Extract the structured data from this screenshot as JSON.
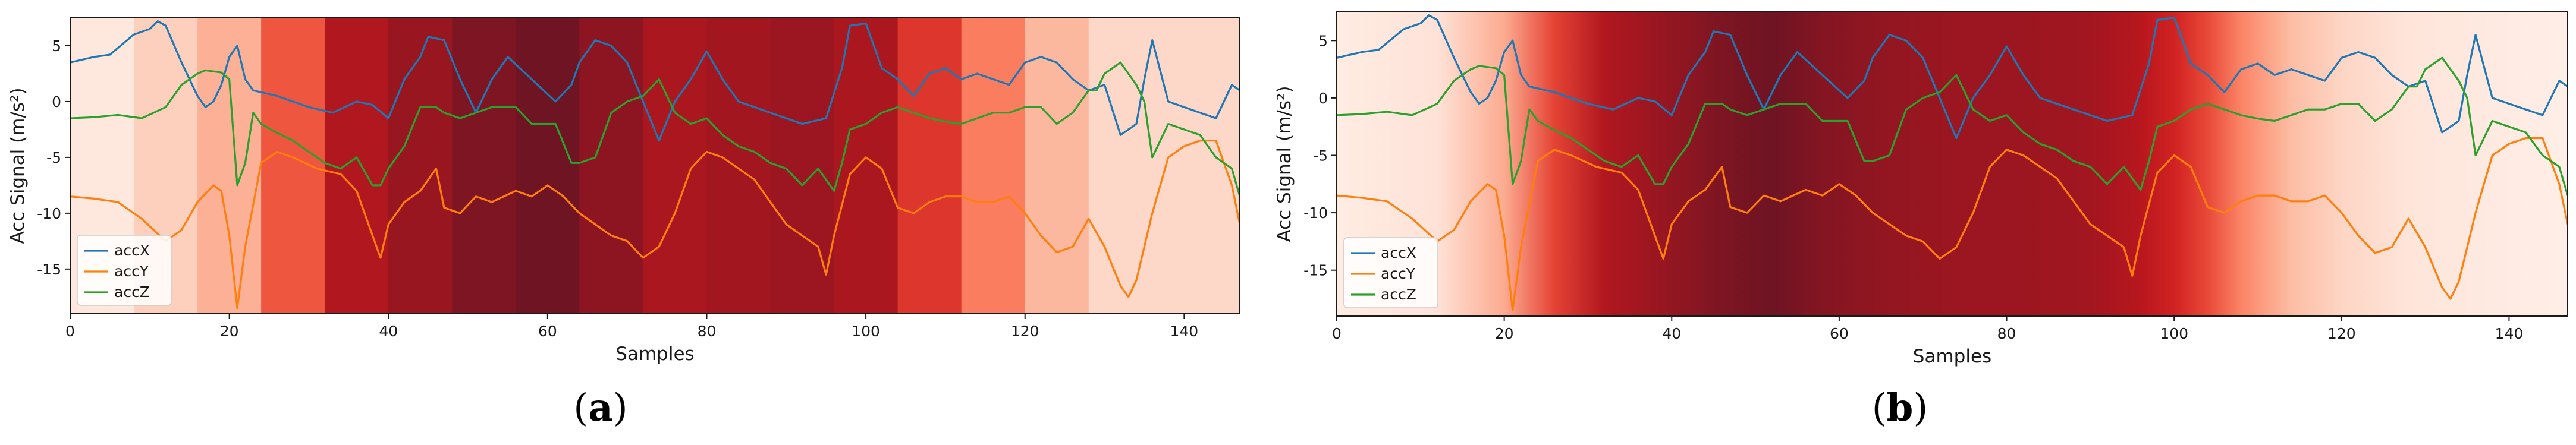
{
  "chart_data": [
    {
      "panel": "(a)",
      "panel_letter": "a",
      "type": "line",
      "background": "discrete_heatmap",
      "xlabel": "Samples",
      "ylabel": "Acc Signal (m/s²)",
      "xlim": [
        0,
        147
      ],
      "ylim": [
        -19,
        7.5
      ],
      "xticks": [
        0,
        20,
        40,
        60,
        80,
        100,
        120,
        140
      ],
      "yticks": [
        -15,
        -10,
        -5,
        0,
        5
      ],
      "legend_position": "lower-left",
      "grid": false,
      "heat_segments": {
        "edges": [
          0,
          8,
          16,
          24,
          32,
          40,
          48,
          56,
          64,
          72,
          80,
          88,
          96,
          104,
          112,
          120,
          128,
          147
        ],
        "intensity": [
          0.06,
          0.16,
          0.28,
          0.56,
          0.82,
          0.89,
          0.96,
          1.0,
          0.92,
          0.84,
          0.86,
          0.88,
          0.84,
          0.66,
          0.44,
          0.26,
          0.13
        ]
      },
      "series": [
        {
          "name": "accX",
          "color": "#1f77b4",
          "x": [
            0,
            3,
            5,
            8,
            10,
            11,
            12,
            14,
            16,
            17,
            18,
            19,
            20,
            21,
            22,
            23,
            26,
            30,
            33,
            36,
            38,
            40,
            42,
            44,
            45,
            47,
            49,
            51,
            53,
            55,
            58,
            61,
            63,
            64,
            66,
            68,
            70,
            72,
            74,
            76,
            78,
            80,
            82,
            84,
            86,
            88,
            90,
            92,
            95,
            97,
            98,
            100,
            102,
            104,
            106,
            108,
            110,
            112,
            114,
            116,
            118,
            120,
            122,
            124,
            126,
            128,
            130,
            132,
            134,
            135,
            136,
            138,
            140,
            142,
            144,
            146,
            147
          ],
          "y": [
            3.5,
            4,
            4.2,
            6,
            6.5,
            7.2,
            6.8,
            3.5,
            0.5,
            -0.5,
            0,
            1.5,
            4,
            5,
            2,
            1,
            0.5,
            -0.5,
            -1,
            0,
            -0.3,
            -1.5,
            2,
            4,
            5.8,
            5.5,
            2,
            -1,
            2,
            4,
            2,
            0,
            1.5,
            3.5,
            5.5,
            5,
            3.5,
            0,
            -3.5,
            0,
            2,
            4.5,
            2,
            0,
            -0.5,
            -1,
            -1.5,
            -2,
            -1.5,
            3,
            6.8,
            7,
            3,
            2,
            0.5,
            2.5,
            3,
            2,
            2.5,
            2,
            1.5,
            3.5,
            4,
            3.5,
            2,
            1,
            1.5,
            -3,
            -2,
            2,
            5.5,
            0,
            -0.5,
            -1,
            -1.5,
            1.5,
            1
          ]
        },
        {
          "name": "accY",
          "color": "#ff7f0e",
          "x": [
            0,
            3,
            6,
            9,
            12,
            14,
            16,
            18,
            19,
            20,
            21,
            22,
            24,
            26,
            28,
            31,
            34,
            36,
            38,
            39,
            40,
            42,
            44,
            46,
            47,
            49,
            51,
            53,
            56,
            58,
            60,
            62,
            64,
            66,
            68,
            70,
            72,
            74,
            76,
            78,
            80,
            82,
            84,
            86,
            88,
            90,
            92,
            94,
            95,
            96,
            98,
            100,
            102,
            104,
            106,
            108,
            110,
            112,
            114,
            116,
            118,
            120,
            122,
            124,
            126,
            128,
            130,
            132,
            133,
            134,
            136,
            138,
            140,
            142,
            144,
            146,
            147
          ],
          "y": [
            -8.5,
            -8.7,
            -9,
            -10.5,
            -12.5,
            -11.5,
            -9,
            -7.5,
            -8,
            -12,
            -18.5,
            -13,
            -5.5,
            -4.5,
            -5,
            -6,
            -6.5,
            -8,
            -12,
            -14,
            -11,
            -9,
            -8,
            -6,
            -9.5,
            -10,
            -8.5,
            -9,
            -8,
            -8.5,
            -7.5,
            -8.5,
            -10,
            -11,
            -12,
            -12.5,
            -14,
            -13,
            -10,
            -6,
            -4.5,
            -5,
            -6,
            -7,
            -9,
            -11,
            -12,
            -13,
            -15.5,
            -12,
            -6.5,
            -5,
            -6,
            -9.5,
            -10,
            -9,
            -8.5,
            -8.5,
            -9,
            -9,
            -8.5,
            -10,
            -12,
            -13.5,
            -13,
            -10.5,
            -13,
            -16.5,
            -17.5,
            -16,
            -10,
            -5,
            -4,
            -3.5,
            -3.5,
            -7.5,
            -11
          ]
        },
        {
          "name": "accZ",
          "color": "#2ca02c",
          "x": [
            0,
            3,
            6,
            9,
            12,
            14,
            16,
            17,
            19,
            20,
            21,
            22,
            23,
            24,
            26,
            28,
            30,
            32,
            34,
            36,
            38,
            39,
            40,
            42,
            44,
            46,
            47,
            49,
            51,
            53,
            56,
            58,
            61,
            63,
            64,
            66,
            68,
            70,
            72,
            74,
            76,
            78,
            80,
            82,
            84,
            86,
            88,
            90,
            92,
            94,
            96,
            97,
            98,
            100,
            102,
            104,
            106,
            108,
            110,
            112,
            114,
            116,
            118,
            120,
            122,
            124,
            126,
            128,
            129,
            130,
            132,
            134,
            135,
            136,
            138,
            140,
            142,
            144,
            146,
            147
          ],
          "y": [
            -1.5,
            -1.4,
            -1.2,
            -1.5,
            -0.5,
            1.5,
            2.5,
            2.8,
            2.6,
            2,
            -7.5,
            -5.5,
            -1,
            -2,
            -2.8,
            -3.5,
            -4.5,
            -5.5,
            -6,
            -5,
            -7.5,
            -7.5,
            -6,
            -4,
            -0.5,
            -0.5,
            -1,
            -1.5,
            -1,
            -0.5,
            -0.5,
            -2,
            -2,
            -5.5,
            -5.5,
            -5,
            -1,
            0,
            0.5,
            2,
            -1,
            -2,
            -1.5,
            -3,
            -4,
            -4.5,
            -5.5,
            -6,
            -7.5,
            -6,
            -8,
            -5.5,
            -2.5,
            -2,
            -1,
            -0.5,
            -1,
            -1.5,
            -1.8,
            -2,
            -1.5,
            -1,
            -1,
            -0.5,
            -0.5,
            -2,
            -1,
            1,
            1,
            2.5,
            3.5,
            1.5,
            0,
            -5,
            -2,
            -2.5,
            -3,
            -5,
            -6,
            -8.5
          ]
        }
      ]
    },
    {
      "panel": "(b)",
      "panel_letter": "b",
      "type": "line",
      "background": "continuous_heatmap",
      "xlabel": "Samples",
      "ylabel": "Acc Signal (m/s²)",
      "xlim": [
        0,
        147
      ],
      "ylim": [
        -19,
        7.5
      ],
      "xticks": [
        0,
        20,
        40,
        60,
        80,
        100,
        120,
        140
      ],
      "yticks": [
        -15,
        -10,
        -5,
        0,
        5
      ],
      "legend_position": "lower-left",
      "grid": false,
      "heat_profile": {
        "x": [
          0,
          12,
          20,
          26,
          32,
          40,
          46,
          52,
          58,
          66,
          74,
          82,
          90,
          96,
          100,
          104,
          108,
          114,
          120,
          128,
          147
        ],
        "intensity": [
          0.04,
          0.08,
          0.3,
          0.62,
          0.82,
          0.9,
          0.96,
          1.0,
          0.94,
          0.9,
          0.88,
          0.88,
          0.86,
          0.8,
          0.72,
          0.6,
          0.42,
          0.24,
          0.14,
          0.07,
          0.03
        ]
      },
      "series": [
        {
          "name": "accX",
          "color": "#1f77b4",
          "x": [
            0,
            3,
            5,
            8,
            10,
            11,
            12,
            14,
            16,
            17,
            18,
            19,
            20,
            21,
            22,
            23,
            26,
            30,
            33,
            36,
            38,
            40,
            42,
            44,
            45,
            47,
            49,
            51,
            53,
            55,
            58,
            61,
            63,
            64,
            66,
            68,
            70,
            72,
            74,
            76,
            78,
            80,
            82,
            84,
            86,
            88,
            90,
            92,
            95,
            97,
            98,
            100,
            102,
            104,
            106,
            108,
            110,
            112,
            114,
            116,
            118,
            120,
            122,
            124,
            126,
            128,
            130,
            132,
            134,
            135,
            136,
            138,
            140,
            142,
            144,
            146,
            147
          ],
          "y": [
            3.5,
            4,
            4.2,
            6,
            6.5,
            7.2,
            6.8,
            3.5,
            0.5,
            -0.5,
            0,
            1.5,
            4,
            5,
            2,
            1,
            0.5,
            -0.5,
            -1,
            0,
            -0.3,
            -1.5,
            2,
            4,
            5.8,
            5.5,
            2,
            -1,
            2,
            4,
            2,
            0,
            1.5,
            3.5,
            5.5,
            5,
            3.5,
            0,
            -3.5,
            0,
            2,
            4.5,
            2,
            0,
            -0.5,
            -1,
            -1.5,
            -2,
            -1.5,
            3,
            6.8,
            7,
            3,
            2,
            0.5,
            2.5,
            3,
            2,
            2.5,
            2,
            1.5,
            3.5,
            4,
            3.5,
            2,
            1,
            1.5,
            -3,
            -2,
            2,
            5.5,
            0,
            -0.5,
            -1,
            -1.5,
            1.5,
            1
          ]
        },
        {
          "name": "accY",
          "color": "#ff7f0e",
          "x": [
            0,
            3,
            6,
            9,
            12,
            14,
            16,
            18,
            19,
            20,
            21,
            22,
            24,
            26,
            28,
            31,
            34,
            36,
            38,
            39,
            40,
            42,
            44,
            46,
            47,
            49,
            51,
            53,
            56,
            58,
            60,
            62,
            64,
            66,
            68,
            70,
            72,
            74,
            76,
            78,
            80,
            82,
            84,
            86,
            88,
            90,
            92,
            94,
            95,
            96,
            98,
            100,
            102,
            104,
            106,
            108,
            110,
            112,
            114,
            116,
            118,
            120,
            122,
            124,
            126,
            128,
            130,
            132,
            133,
            134,
            136,
            138,
            140,
            142,
            144,
            146,
            147
          ],
          "y": [
            -8.5,
            -8.7,
            -9,
            -10.5,
            -12.5,
            -11.5,
            -9,
            -7.5,
            -8,
            -12,
            -18.5,
            -13,
            -5.5,
            -4.5,
            -5,
            -6,
            -6.5,
            -8,
            -12,
            -14,
            -11,
            -9,
            -8,
            -6,
            -9.5,
            -10,
            -8.5,
            -9,
            -8,
            -8.5,
            -7.5,
            -8.5,
            -10,
            -11,
            -12,
            -12.5,
            -14,
            -13,
            -10,
            -6,
            -4.5,
            -5,
            -6,
            -7,
            -9,
            -11,
            -12,
            -13,
            -15.5,
            -12,
            -6.5,
            -5,
            -6,
            -9.5,
            -10,
            -9,
            -8.5,
            -8.5,
            -9,
            -9,
            -8.5,
            -10,
            -12,
            -13.5,
            -13,
            -10.5,
            -13,
            -16.5,
            -17.5,
            -16,
            -10,
            -5,
            -4,
            -3.5,
            -3.5,
            -7.5,
            -11
          ]
        },
        {
          "name": "accZ",
          "color": "#2ca02c",
          "x": [
            0,
            3,
            6,
            9,
            12,
            14,
            16,
            17,
            19,
            20,
            21,
            22,
            23,
            24,
            26,
            28,
            30,
            32,
            34,
            36,
            38,
            39,
            40,
            42,
            44,
            46,
            47,
            49,
            51,
            53,
            56,
            58,
            61,
            63,
            64,
            66,
            68,
            70,
            72,
            74,
            76,
            78,
            80,
            82,
            84,
            86,
            88,
            90,
            92,
            94,
            96,
            97,
            98,
            100,
            102,
            104,
            106,
            108,
            110,
            112,
            114,
            116,
            118,
            120,
            122,
            124,
            126,
            128,
            129,
            130,
            132,
            134,
            135,
            136,
            138,
            140,
            142,
            144,
            146,
            147
          ],
          "y": [
            -1.5,
            -1.4,
            -1.2,
            -1.5,
            -0.5,
            1.5,
            2.5,
            2.8,
            2.6,
            2,
            -7.5,
            -5.5,
            -1,
            -2,
            -2.8,
            -3.5,
            -4.5,
            -5.5,
            -6,
            -5,
            -7.5,
            -7.5,
            -6,
            -4,
            -0.5,
            -0.5,
            -1,
            -1.5,
            -1,
            -0.5,
            -0.5,
            -2,
            -2,
            -5.5,
            -5.5,
            -5,
            -1,
            0,
            0.5,
            2,
            -1,
            -2,
            -1.5,
            -3,
            -4,
            -4.5,
            -5.5,
            -6,
            -7.5,
            -6,
            -8,
            -5.5,
            -2.5,
            -2,
            -1,
            -0.5,
            -1,
            -1.5,
            -1.8,
            -2,
            -1.5,
            -1,
            -1,
            -0.5,
            -0.5,
            -2,
            -1,
            1,
            1,
            2.5,
            3.5,
            1.5,
            0,
            -5,
            -2,
            -2.5,
            -3,
            -5,
            -6,
            -8.5
          ]
        }
      ]
    }
  ]
}
